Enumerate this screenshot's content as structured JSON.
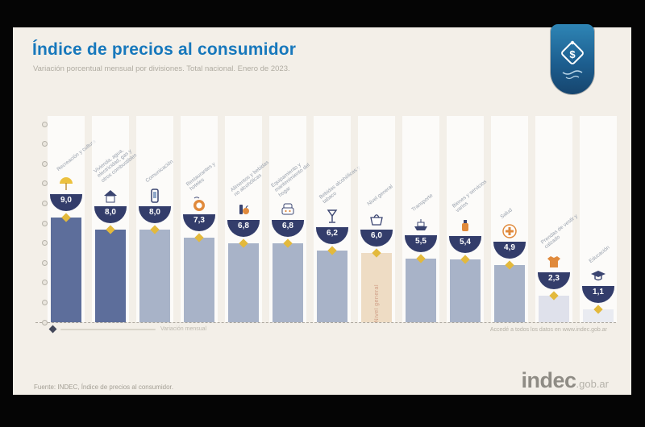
{
  "header": {
    "title": "Índice de precios al consumidor",
    "subtitle": "Variación porcentual mensual por divisiones. Total nacional. Enero de 2023.",
    "logo_symbol": "$"
  },
  "chart_data": {
    "type": "bar",
    "title": "Índice de precios al consumidor",
    "subtitle": "Variación porcentual mensual por divisiones. Total nacional. Enero de 2023.",
    "unit": "%",
    "ylim": [
      0,
      10
    ],
    "grid": "dotted-ticks-left",
    "legend_position": "bottom-left",
    "categories": [
      "Recreación y cultura",
      "Vivienda, agua, electricidad, gas y otros combustibles",
      "Comunicación",
      "Restaurantes y hoteles",
      "Alimentos y bebidas no alcohólicas",
      "Equipamiento y mantenimiento del hogar",
      "Bebidas alcohólicas y tabaco",
      "Nivel general",
      "Transporte",
      "Bienes y servicios varios",
      "Salud",
      "Prendas de vestir y calzado",
      "Educación"
    ],
    "values": [
      9.0,
      8.0,
      8.0,
      7.3,
      6.8,
      6.8,
      6.2,
      6.0,
      5.5,
      5.4,
      4.9,
      2.3,
      1.1
    ],
    "value_labels": [
      "9,0",
      "8,0",
      "8,0",
      "7,3",
      "6,8",
      "6,8",
      "6,2",
      "6,0",
      "5,5",
      "5,4",
      "4,9",
      "2,3",
      "1,1"
    ],
    "highlight_index": 7,
    "highlight_label": "Nivel general",
    "icons": [
      "beach-umbrella-icon",
      "house-icon",
      "phone-icon",
      "restaurant-plate-icon",
      "food-basket-icon",
      "armchair-icon",
      "wine-glass-icon",
      "shopping-basket-icon",
      "ship-icon",
      "perfume-icon",
      "health-cross-icon",
      "tshirt-icon",
      "graduation-cap-icon"
    ],
    "bar_colors": [
      "#5d6e9b",
      "#5d6e9b",
      "#a8b3c8",
      "#a8b3c8",
      "#a8b3c8",
      "#a8b3c8",
      "#a8b3c8",
      "#eedcc4",
      "#a8b3c8",
      "#a8b3c8",
      "#a8b3c8",
      "#dfe1eb",
      "#e9ebf1"
    ],
    "badge_color": "#333d6b",
    "marker_color": "#e3b93c",
    "axis_tick_count": 11
  },
  "legend": {
    "label": "Variación mensual"
  },
  "notes": {
    "right": "Accedé a todos los datos en www.indec.gob.ar"
  },
  "footer": {
    "source": "Fuente: INDEC, Índice de precios al consumidor.",
    "brand": "indec",
    "brand_suffix": ".gob.ar"
  },
  "colors": {
    "title": "#1778bc",
    "card_bg": "#f3efe8",
    "frame": "#000000"
  }
}
